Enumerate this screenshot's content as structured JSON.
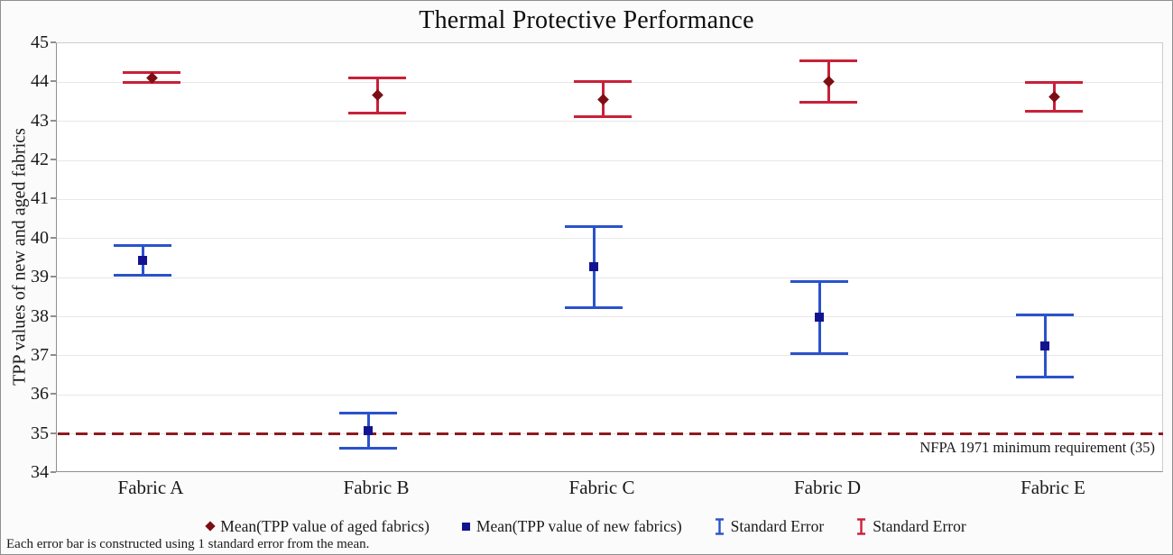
{
  "figure": {
    "title": "Thermal Protective Performance",
    "footnote": "Each error bar is constructed using 1 standard error from the mean."
  },
  "chart_data": {
    "type": "scatter",
    "title": "Thermal Protective Performance",
    "xlabel": "",
    "ylabel": "TPP values of new and aged fabrics",
    "categories": [
      "Fabric A",
      "Fabric B",
      "Fabric C",
      "Fabric D",
      "Fabric E"
    ],
    "ylim": [
      34,
      45
    ],
    "ytick_step": 1,
    "grid": "horizontal",
    "error_bar_rule": "1 standard error from the mean",
    "series": [
      {
        "name": "Mean(TPP value of aged fabrics)",
        "marker": "diamond",
        "marker_color": "#7c0f13",
        "errorbar_color": "#c82138",
        "means": [
          44.12,
          43.67,
          43.57,
          44.03,
          43.63
        ],
        "std_errors": [
          0.12,
          0.45,
          0.45,
          0.53,
          0.36
        ]
      },
      {
        "name": "Mean(TPP value of new fabrics)",
        "marker": "square",
        "marker_color": "#14138f",
        "errorbar_color": "#2a52cc",
        "means": [
          39.45,
          35.08,
          39.27,
          37.98,
          37.25
        ],
        "std_errors": [
          0.38,
          0.45,
          1.03,
          0.92,
          0.79
        ]
      }
    ],
    "reference_line": {
      "y": 35,
      "style": "dashed",
      "color": "#8e1a1f",
      "label": "NFPA 1971 minimum requirement (35)"
    },
    "legend_position": "bottom",
    "legend": [
      {
        "glyph": "diamond",
        "color": "#7c0f13",
        "label": "Mean(TPP value of aged fabrics)"
      },
      {
        "glyph": "square",
        "color": "#14138f",
        "label": "Mean(TPP value of new fabrics)"
      },
      {
        "glyph": "errorbar",
        "color": "#2a52cc",
        "label": "Standard Error"
      },
      {
        "glyph": "errorbar",
        "color": "#c82138",
        "label": "Standard Error"
      }
    ]
  }
}
